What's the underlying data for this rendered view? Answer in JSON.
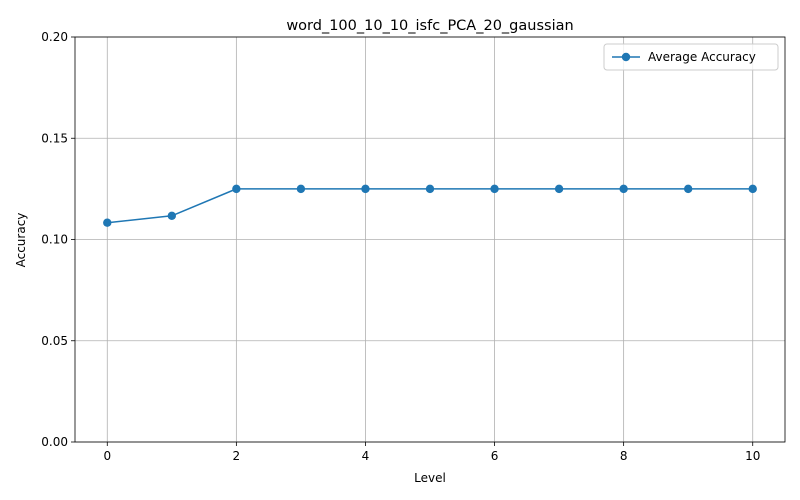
{
  "chart_data": {
    "type": "line",
    "title": "word_100_10_10_isfc_PCA_20_gaussian",
    "xlabel": "Level",
    "ylabel": "Accuracy",
    "xlim": [
      -0.5,
      10.5
    ],
    "ylim": [
      0.0,
      0.2
    ],
    "xticks": [
      0,
      2,
      4,
      6,
      8,
      10
    ],
    "xtick_labels": [
      "0",
      "2",
      "4",
      "6",
      "8",
      "10"
    ],
    "yticks": [
      0.0,
      0.05,
      0.1,
      0.15,
      0.2
    ],
    "ytick_labels": [
      "0.00",
      "0.05",
      "0.10",
      "0.15",
      "0.20"
    ],
    "grid": true,
    "legend_position": "top-right",
    "x": [
      0,
      1,
      2,
      3,
      4,
      5,
      6,
      7,
      8,
      9,
      10
    ],
    "series": [
      {
        "name": "Average Accuracy",
        "color": "#1f77b4",
        "marker": "circle",
        "values": [
          0.1083,
          0.1117,
          0.125,
          0.125,
          0.125,
          0.125,
          0.125,
          0.125,
          0.125,
          0.125,
          0.125
        ]
      }
    ]
  }
}
